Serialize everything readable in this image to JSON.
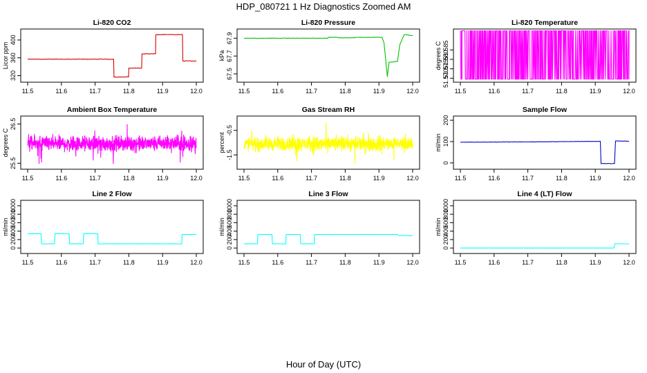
{
  "figure": {
    "title": "HDP_080721  1 Hz Diagnostics Zoomed AM",
    "xlabel": "Hour of Day (UTC)"
  },
  "chart_data": [
    {
      "type": "line",
      "title": "Li-820 CO2",
      "ylabel": "Licor ppm",
      "color": "#d40000",
      "xlim": [
        11.5,
        12.0
      ],
      "ylim": [
        310,
        420
      ],
      "x_ticks": [
        "11.5",
        "11.6",
        "11.7",
        "11.8",
        "11.9",
        "12.0"
      ],
      "y_ticks": [
        {
          "v": 320,
          "label": "320"
        },
        {
          "v": 360,
          "label": "360"
        },
        {
          "v": 400,
          "label": "400"
        }
      ],
      "noise": 1.0,
      "x": [
        11.5,
        11.755,
        11.756,
        11.799,
        11.8,
        11.838,
        11.839,
        11.879,
        11.88,
        11.959,
        11.96,
        12.0
      ],
      "y": [
        357,
        357,
        317,
        317,
        337,
        337,
        369,
        369,
        412,
        412,
        353,
        353
      ]
    },
    {
      "type": "line",
      "title": "Li-820 Pressure",
      "ylabel": "kPa",
      "color": "#00c000",
      "xlim": [
        11.5,
        12.0
      ],
      "ylim": [
        67.43,
        67.98
      ],
      "x_ticks": [
        "11.5",
        "11.6",
        "11.7",
        "11.8",
        "11.9",
        "12.0"
      ],
      "y_ticks": [
        {
          "v": 67.5,
          "label": "67.5"
        },
        {
          "v": 67.7,
          "label": "67.7"
        },
        {
          "v": 67.9,
          "label": "67.9"
        }
      ],
      "noise": 0.004,
      "x": [
        11.5,
        11.749,
        11.75,
        11.779,
        11.78,
        11.829,
        11.83,
        11.909,
        11.915,
        11.925,
        11.93,
        11.955,
        11.962,
        11.975,
        12.0
      ],
      "y": [
        67.9,
        67.9,
        67.91,
        67.91,
        67.905,
        67.905,
        67.91,
        67.91,
        67.85,
        67.47,
        67.63,
        67.64,
        67.83,
        67.94,
        67.93
      ]
    },
    {
      "type": "spikes",
      "title": "Li-820 Temperature",
      "ylabel": "degrees C",
      "color": "#ff00ff",
      "xlim": [
        11.5,
        12.0
      ],
      "ylim": [
        51.569,
        51.595
      ],
      "x_ticks": [
        "11.5",
        "11.6",
        "11.7",
        "11.8",
        "11.9",
        "12.0"
      ],
      "y_ticks": [
        {
          "v": 51.57,
          "label": "51.570"
        },
        {
          "v": 51.575,
          "label": "51.575"
        },
        {
          "v": 51.58,
          "label": "51.580"
        },
        {
          "v": 51.585,
          "label": "51.585"
        }
      ],
      "low": 51.5695,
      "high": 51.5952,
      "density": 0.55
    },
    {
      "type": "noise",
      "title": "Ambient Box Temperature",
      "ylabel": "degrees C",
      "color": "#ff00ff",
      "xlim": [
        11.5,
        12.0
      ],
      "ylim": [
        25.4,
        26.65
      ],
      "x_ticks": [
        "11.5",
        "11.6",
        "11.7",
        "11.8",
        "11.9",
        "12.0"
      ],
      "y_ticks": [
        {
          "v": 25.5,
          "label": "25.5"
        },
        {
          "v": 26.5,
          "label": "26.5"
        }
      ],
      "mean": 26.0,
      "spread": 0.28,
      "n": 900
    },
    {
      "type": "noise",
      "title": "Gas Stream RH",
      "ylabel": "percent",
      "color": "#ffff00",
      "xlim": [
        11.5,
        12.0
      ],
      "ylim": [
        -2.0,
        0.0
      ],
      "x_ticks": [
        "11.5",
        "11.6",
        "11.7",
        "11.8",
        "11.9",
        "12.0"
      ],
      "y_ticks": [
        {
          "v": -1.5,
          "label": "-1.5"
        },
        {
          "v": -0.5,
          "label": "-0.5"
        }
      ],
      "mean": -1.05,
      "spread": 0.42,
      "n": 900
    },
    {
      "type": "line",
      "title": "Sample Flow",
      "ylabel": "ml/min",
      "color": "#0000cc",
      "xlim": [
        11.5,
        12.0
      ],
      "ylim": [
        -20,
        210
      ],
      "x_ticks": [
        "11.5",
        "11.6",
        "11.7",
        "11.8",
        "11.9",
        "12.0"
      ],
      "y_ticks": [
        {
          "v": 0,
          "label": "0"
        },
        {
          "v": 100,
          "label": "100"
        },
        {
          "v": 200,
          "label": "200"
        }
      ],
      "noise": 1.2,
      "x": [
        11.5,
        11.75,
        11.9,
        11.915,
        11.917,
        11.957,
        11.96,
        12.0
      ],
      "y": [
        97,
        99,
        101,
        101,
        -3,
        -3,
        103,
        102
      ]
    },
    {
      "type": "line",
      "title": "Line 2 Flow",
      "ylabel": "ml/min",
      "color": "#00ffff",
      "xlim": [
        11.5,
        12.0
      ],
      "ylim": [
        -80,
        1080
      ],
      "x_ticks": [
        "11.5",
        "11.6",
        "11.7",
        "11.8",
        "11.9",
        "12.0"
      ],
      "y_ticks": [
        {
          "v": 0,
          "label": "0"
        },
        {
          "v": 200,
          "label": "200"
        },
        {
          "v": 400,
          "label": "400"
        },
        {
          "v": 600,
          "label": "600"
        },
        {
          "v": 800,
          "label": "800"
        },
        {
          "v": 1000,
          "label": "1000"
        }
      ],
      "noise": 5,
      "x": [
        11.5,
        11.54,
        11.541,
        11.58,
        11.581,
        11.623,
        11.624,
        11.665,
        11.666,
        11.708,
        11.709,
        11.957,
        11.958,
        12.0
      ],
      "y": [
        340,
        340,
        100,
        100,
        340,
        340,
        100,
        100,
        340,
        340,
        100,
        100,
        320,
        320
      ]
    },
    {
      "type": "line",
      "title": "Line 3 Flow",
      "ylabel": "ml/min",
      "color": "#00ffff",
      "xlim": [
        11.5,
        12.0
      ],
      "ylim": [
        -80,
        1080
      ],
      "x_ticks": [
        "11.5",
        "11.6",
        "11.7",
        "11.8",
        "11.9",
        "12.0"
      ],
      "y_ticks": [
        {
          "v": 0,
          "label": "0"
        },
        {
          "v": 200,
          "label": "200"
        },
        {
          "v": 400,
          "label": "400"
        },
        {
          "v": 600,
          "label": "600"
        },
        {
          "v": 800,
          "label": "800"
        },
        {
          "v": 1000,
          "label": "1000"
        }
      ],
      "noise": 5,
      "x": [
        11.5,
        11.54,
        11.541,
        11.583,
        11.584,
        11.624,
        11.625,
        11.667,
        11.668,
        11.708,
        11.709,
        11.957,
        11.958,
        12.0
      ],
      "y": [
        100,
        100,
        320,
        320,
        100,
        100,
        320,
        320,
        100,
        100,
        320,
        320,
        295,
        295
      ]
    },
    {
      "type": "line",
      "title": "Line 4 (LT) Flow",
      "ylabel": "ml/min",
      "color": "#00ffff",
      "xlim": [
        11.5,
        12.0
      ],
      "ylim": [
        -80,
        1080
      ],
      "x_ticks": [
        "11.5",
        "11.6",
        "11.7",
        "11.8",
        "11.9",
        "12.0"
      ],
      "y_ticks": [
        {
          "v": 0,
          "label": "0"
        },
        {
          "v": 200,
          "label": "200"
        },
        {
          "v": 400,
          "label": "400"
        },
        {
          "v": 600,
          "label": "600"
        },
        {
          "v": 800,
          "label": "800"
        },
        {
          "v": 1000,
          "label": "1000"
        }
      ],
      "noise": 2,
      "x": [
        11.5,
        11.955,
        11.958,
        12.0
      ],
      "y": [
        0,
        0,
        100,
        100
      ]
    }
  ]
}
